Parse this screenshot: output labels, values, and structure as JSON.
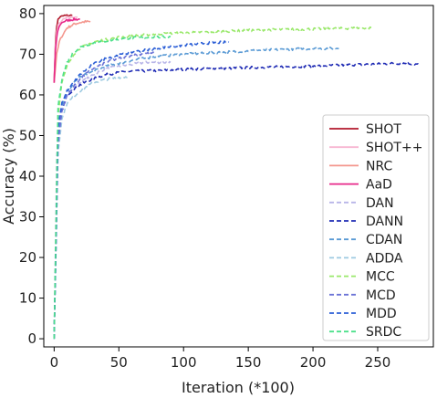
{
  "chart_data": {
    "type": "line",
    "xlabel": "Iteration (*100)",
    "ylabel": "Accuracy (%)",
    "xlim": [
      -8,
      293
    ],
    "ylim": [
      -2,
      82
    ],
    "xticks": [
      0,
      50,
      100,
      150,
      200,
      250
    ],
    "yticks": [
      0,
      10,
      20,
      30,
      40,
      50,
      60,
      70,
      80
    ],
    "grid": false,
    "legend_position": "right",
    "series": [
      {
        "name": "SHOT",
        "color": "#b2182b",
        "dash": "solid",
        "x": [
          0,
          1,
          2,
          3,
          4,
          6,
          8,
          10,
          12,
          14
        ],
        "y": [
          63,
          73,
          77,
          78.5,
          79,
          79.3,
          79.5,
          79.5,
          79.6,
          79.5
        ]
      },
      {
        "name": "SHOT++",
        "color": "#f7b6d2",
        "dash": "solid",
        "x": [
          0,
          1,
          2,
          3,
          5,
          7,
          10,
          12,
          15,
          18
        ],
        "y": [
          63,
          72,
          75.5,
          77,
          78,
          78.5,
          79,
          79,
          79.2,
          79.2
        ]
      },
      {
        "name": "NRC",
        "color": "#f4978e",
        "dash": "solid",
        "x": [
          0,
          2,
          4,
          6,
          8,
          10,
          13,
          16,
          20,
          24,
          28
        ],
        "y": [
          63,
          70,
          73,
          74.5,
          75.5,
          76.5,
          77,
          77.5,
          77.8,
          78,
          78
        ]
      },
      {
        "name": "AaD",
        "color": "#e7298a",
        "dash": "solid",
        "x": [
          0,
          1,
          2,
          3,
          5,
          7,
          10,
          13,
          16,
          20
        ],
        "y": [
          63,
          71,
          74,
          76,
          77.5,
          78,
          78.3,
          78.5,
          78.6,
          78.6
        ]
      },
      {
        "name": "DAN",
        "color": "#b8b5e8",
        "dash": "dashed",
        "x": [
          0,
          2,
          5,
          10,
          20,
          30,
          40,
          50,
          60,
          70,
          80,
          90
        ],
        "y": [
          0,
          45,
          56,
          60,
          63,
          65,
          66.5,
          67,
          67.5,
          68,
          68,
          68
        ]
      },
      {
        "name": "DANN",
        "color": "#1f2bb4",
        "dash": "dashed",
        "x": [
          0,
          3,
          6,
          10,
          20,
          30,
          40,
          50,
          60,
          80,
          100,
          130,
          160,
          190,
          220,
          250,
          270,
          282
        ],
        "y": [
          0,
          48,
          56,
          60,
          62.5,
          64,
          65,
          65.5,
          65.8,
          66,
          66.3,
          66.5,
          66.8,
          67,
          67.3,
          67.6,
          67.8,
          67.5
        ]
      },
      {
        "name": "CDAN",
        "color": "#5b9bd5",
        "dash": "dashed",
        "x": [
          0,
          3,
          6,
          10,
          20,
          40,
          60,
          80,
          100,
          130,
          160,
          190,
          220
        ],
        "y": [
          0,
          50,
          57,
          61,
          64.5,
          67,
          68.5,
          69.5,
          70,
          70.5,
          71,
          71.3,
          71.5
        ]
      },
      {
        "name": "ADDA",
        "color": "#9ecae1",
        "dash": "dashed",
        "x": [
          0,
          3,
          6,
          10,
          20,
          30,
          40,
          50,
          57
        ],
        "y": [
          0,
          46,
          54,
          58,
          61,
          63,
          63.8,
          64.3,
          64.5
        ]
      },
      {
        "name": "MCC",
        "color": "#99e86a",
        "dash": "dashed",
        "x": [
          0,
          3,
          6,
          10,
          15,
          20,
          30,
          50,
          80,
          120,
          160,
          200,
          245
        ],
        "y": [
          0,
          55,
          63,
          67,
          70,
          71.5,
          73,
          74.2,
          75,
          75.5,
          76,
          76.2,
          76.5
        ]
      },
      {
        "name": "MCD",
        "color": "#6b73d6",
        "dash": "dashed",
        "x": [
          0,
          3,
          6,
          10,
          20,
          30,
          40,
          50,
          60,
          70,
          78
        ],
        "y": [
          0,
          48,
          56,
          60,
          64,
          66.5,
          68,
          69,
          69.7,
          70.2,
          70.3
        ]
      },
      {
        "name": "MDD",
        "color": "#2b5ed6",
        "dash": "dashed",
        "x": [
          0,
          3,
          6,
          10,
          20,
          30,
          40,
          60,
          80,
          100,
          120,
          135
        ],
        "y": [
          0,
          52,
          58,
          61,
          65,
          67.5,
          69,
          70.5,
          71.5,
          72.2,
          72.8,
          73
        ]
      },
      {
        "name": "SRDC",
        "color": "#4ce08a",
        "dash": "dashed",
        "x": [
          0,
          3,
          6,
          10,
          15,
          20,
          30,
          45,
          60,
          75,
          90
        ],
        "y": [
          0,
          57,
          64,
          68,
          70.5,
          71.7,
          72.8,
          73.5,
          74,
          74.2,
          74.3
        ]
      }
    ]
  }
}
